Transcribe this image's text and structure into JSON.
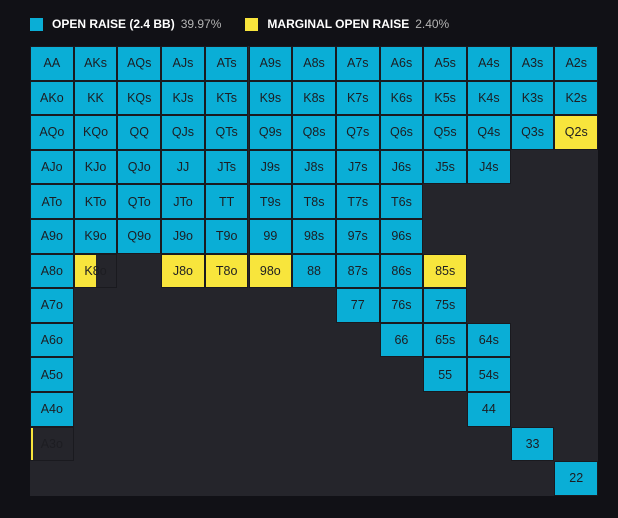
{
  "legend": [
    {
      "label": "OPEN RAISE (2.4 BB)",
      "pct": "39.97%",
      "color": "#0aaed6"
    },
    {
      "label": "MARGINAL OPEN RAISE",
      "pct": "2.40%",
      "color": "#f8e53c"
    }
  ],
  "colors": {
    "raise": "#0aaed6",
    "marginal": "#f8e53c",
    "fold": "#25252b",
    "text": "#1d1d22",
    "border": "#1a1a1f"
  },
  "chart_data": {
    "type": "heatmap",
    "ranks": [
      "A",
      "K",
      "Q",
      "J",
      "T",
      "9",
      "8",
      "7",
      "6",
      "5",
      "4",
      "3",
      "2"
    ],
    "rows": [
      [
        "AA",
        "AKs",
        "AQs",
        "AJs",
        "ATs",
        "A9s",
        "A8s",
        "A7s",
        "A6s",
        "A5s",
        "A4s",
        "A3s",
        "A2s"
      ],
      [
        "AKo",
        "KK",
        "KQs",
        "KJs",
        "KTs",
        "K9s",
        "K8s",
        "K7s",
        "K6s",
        "K5s",
        "K4s",
        "K3s",
        "K2s"
      ],
      [
        "AQo",
        "KQo",
        "QQ",
        "QJs",
        "QTs",
        "Q9s",
        "Q8s",
        "Q7s",
        "Q6s",
        "Q5s",
        "Q4s",
        "Q3s",
        "Q2s"
      ],
      [
        "AJo",
        "KJo",
        "QJo",
        "JJ",
        "JTs",
        "J9s",
        "J8s",
        "J7s",
        "J6s",
        "J5s",
        "J4s",
        "",
        ""
      ],
      [
        "ATo",
        "KTo",
        "QTo",
        "JTo",
        "TT",
        "T9s",
        "T8s",
        "T7s",
        "T6s",
        "",
        "",
        "",
        ""
      ],
      [
        "A9o",
        "K9o",
        "Q9o",
        "J9o",
        "T9o",
        "99",
        "98s",
        "97s",
        "96s",
        "",
        "",
        "",
        ""
      ],
      [
        "A8o",
        "K8o",
        "",
        "J8o",
        "T8o",
        "98o",
        "88",
        "87s",
        "86s",
        "85s",
        "",
        "",
        ""
      ],
      [
        "A7o",
        "",
        "",
        "",
        "",
        "",
        "",
        "77",
        "76s",
        "75s",
        "",
        "",
        ""
      ],
      [
        "A6o",
        "",
        "",
        "",
        "",
        "",
        "",
        "",
        "66",
        "65s",
        "64s",
        "",
        ""
      ],
      [
        "A5o",
        "",
        "",
        "",
        "",
        "",
        "",
        "",
        "",
        "55",
        "54s",
        "",
        ""
      ],
      [
        "A4o",
        "",
        "",
        "",
        "",
        "",
        "",
        "",
        "",
        "",
        "44",
        "",
        ""
      ],
      [
        "A3o",
        "",
        "",
        "",
        "",
        "",
        "",
        "",
        "",
        "",
        "",
        "33",
        ""
      ],
      [
        "",
        "",
        "",
        "",
        "",
        "",
        "",
        "",
        "",
        "",
        "",
        "",
        "22"
      ]
    ],
    "actions": [
      [
        "R",
        "R",
        "R",
        "R",
        "R",
        "R",
        "R",
        "R",
        "R",
        "R",
        "R",
        "R",
        "R"
      ],
      [
        "R",
        "R",
        "R",
        "R",
        "R",
        "R",
        "R",
        "R",
        "R",
        "R",
        "R",
        "R",
        "R"
      ],
      [
        "R",
        "R",
        "R",
        "R",
        "R",
        "R",
        "R",
        "R",
        "R",
        "R",
        "R",
        "R",
        "M"
      ],
      [
        "R",
        "R",
        "R",
        "R",
        "R",
        "R",
        "R",
        "R",
        "R",
        "R",
        "R",
        "F",
        "F"
      ],
      [
        "R",
        "R",
        "R",
        "R",
        "R",
        "R",
        "R",
        "R",
        "R",
        "F",
        "F",
        "F",
        "F"
      ],
      [
        "R",
        "R",
        "R",
        "R",
        "R",
        "R",
        "R",
        "R",
        "R",
        "F",
        "F",
        "F",
        "F"
      ],
      [
        "R",
        "P",
        "F",
        "M",
        "M",
        "M",
        "R",
        "R",
        "R",
        "M",
        "F",
        "F",
        "F"
      ],
      [
        "R",
        "F",
        "F",
        "F",
        "F",
        "F",
        "F",
        "R",
        "R",
        "R",
        "F",
        "F",
        "F"
      ],
      [
        "R",
        "F",
        "F",
        "F",
        "F",
        "F",
        "F",
        "F",
        "R",
        "R",
        "R",
        "F",
        "F"
      ],
      [
        "R",
        "F",
        "F",
        "F",
        "F",
        "F",
        "F",
        "F",
        "F",
        "R",
        "R",
        "F",
        "F"
      ],
      [
        "R",
        "F",
        "F",
        "F",
        "F",
        "F",
        "F",
        "F",
        "F",
        "F",
        "R",
        "F",
        "F"
      ],
      [
        "X",
        "F",
        "F",
        "F",
        "F",
        "F",
        "F",
        "F",
        "F",
        "F",
        "F",
        "R",
        "F"
      ],
      [
        "F",
        "F",
        "F",
        "F",
        "F",
        "F",
        "F",
        "F",
        "F",
        "F",
        "F",
        "F",
        "R"
      ]
    ],
    "partial_fractions": {
      "R": 1,
      "M": 1,
      "F": 0,
      "P": 0.5,
      "X": 0.05
    },
    "partial_colors": {
      "P": "#f8e53c",
      "X": "#f8e53c"
    }
  }
}
